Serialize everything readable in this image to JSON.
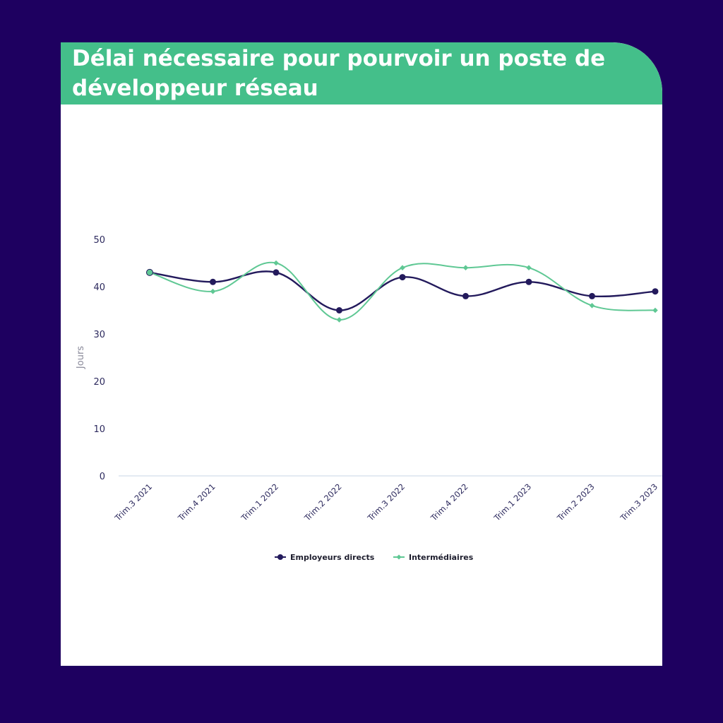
{
  "title": "Délai nécessaire pour pourvoir un poste de développeur réseau",
  "colors": {
    "background": "#1e0060",
    "title_bar": "#44bf8a",
    "series_direct": "#231a5c",
    "series_intermediaires": "#5fc894",
    "axis": "#c8d4e6"
  },
  "chart_data": {
    "type": "line",
    "categories": [
      "Trim.3 2021",
      "Trim.4 2021",
      "Trim.1 2022",
      "Trim.2 2022",
      "Trim.3 2022",
      "Trim.4 2022",
      "Trim.1 2023",
      "Trim.2 2023",
      "Trim.3 2023"
    ],
    "series": [
      {
        "name": "Employeurs directs",
        "values": [
          43,
          41,
          43,
          35,
          42,
          38,
          41,
          38,
          39
        ]
      },
      {
        "name": "Intermédiaires",
        "values": [
          43,
          39,
          45,
          33,
          44,
          44,
          44,
          36,
          35
        ]
      }
    ],
    "ylabel": "Jours",
    "yticks": [
      0,
      10,
      20,
      30,
      40,
      50
    ],
    "ylim": [
      0,
      50
    ],
    "legend_position": "bottom-center",
    "grid": false
  }
}
